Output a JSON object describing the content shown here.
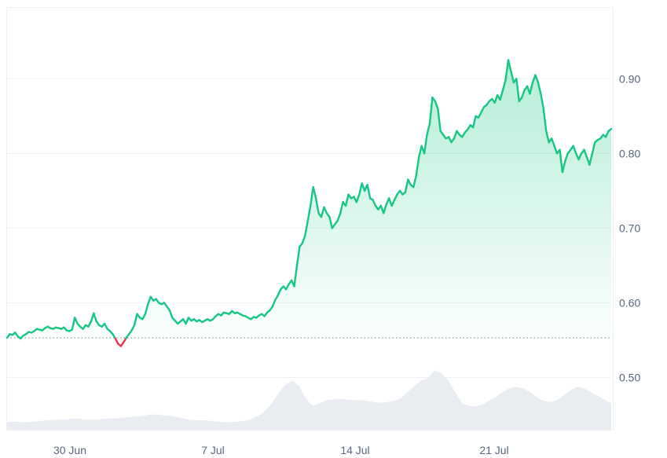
{
  "chart_data": {
    "type": "area",
    "title": "",
    "xlabel": "",
    "ylabel": "",
    "x_ticks": [
      "30 Jun",
      "7 Jul",
      "14 Jul",
      "21 Jul"
    ],
    "y_ticks": [
      "0.90",
      "0.80",
      "0.70",
      "0.60",
      "0.50"
    ],
    "ylim": [
      0.43,
      0.995
    ],
    "y_axis_position": "right",
    "grid": "horizontal",
    "baseline": 0.553,
    "colors": {
      "up": "#16c784",
      "down": "#ea3943",
      "fill": "#16c784",
      "volume": "#e9ecf0",
      "grid": "#eff2f5",
      "axis_text": "#58667e"
    },
    "series": [
      {
        "values": [
          0.553,
          0.558,
          0.557,
          0.56,
          0.555,
          0.552,
          0.556,
          0.558,
          0.561,
          0.56,
          0.562,
          0.565,
          0.564,
          0.563,
          0.566,
          0.568,
          0.566,
          0.565,
          0.567,
          0.566,
          0.565,
          0.567,
          0.563,
          0.562,
          0.564,
          0.58,
          0.572,
          0.568,
          0.565,
          0.57,
          0.568,
          0.575,
          0.586,
          0.575,
          0.57,
          0.568,
          0.572,
          0.565,
          0.562,
          0.558,
          0.552,
          0.545,
          0.542,
          0.547,
          0.553,
          0.558,
          0.563,
          0.57,
          0.585,
          0.58,
          0.578,
          0.585,
          0.598,
          0.608,
          0.603,
          0.605,
          0.6,
          0.598,
          0.6,
          0.595,
          0.59,
          0.58,
          0.576,
          0.572,
          0.575,
          0.578,
          0.572,
          0.58,
          0.576,
          0.578,
          0.575,
          0.577,
          0.574,
          0.576,
          0.578,
          0.576,
          0.578,
          0.582,
          0.585,
          0.583,
          0.587,
          0.586,
          0.585,
          0.589,
          0.586,
          0.587,
          0.585,
          0.583,
          0.582,
          0.58,
          0.578,
          0.581,
          0.58,
          0.583,
          0.585,
          0.582,
          0.587,
          0.59,
          0.595,
          0.604,
          0.61,
          0.618,
          0.622,
          0.618,
          0.625,
          0.63,
          0.622,
          0.65,
          0.675,
          0.68,
          0.69,
          0.71,
          0.73,
          0.755,
          0.74,
          0.72,
          0.715,
          0.728,
          0.72,
          0.715,
          0.7,
          0.705,
          0.71,
          0.72,
          0.735,
          0.73,
          0.745,
          0.74,
          0.742,
          0.735,
          0.745,
          0.76,
          0.75,
          0.758,
          0.74,
          0.738,
          0.73,
          0.725,
          0.73,
          0.72,
          0.732,
          0.74,
          0.73,
          0.738,
          0.745,
          0.75,
          0.745,
          0.748,
          0.765,
          0.758,
          0.755,
          0.77,
          0.795,
          0.81,
          0.8,
          0.825,
          0.84,
          0.875,
          0.87,
          0.86,
          0.83,
          0.825,
          0.82,
          0.822,
          0.815,
          0.82,
          0.83,
          0.825,
          0.822,
          0.828,
          0.832,
          0.838,
          0.835,
          0.85,
          0.848,
          0.855,
          0.862,
          0.865,
          0.87,
          0.873,
          0.868,
          0.878,
          0.872,
          0.885,
          0.898,
          0.925,
          0.91,
          0.895,
          0.9,
          0.87,
          0.875,
          0.885,
          0.89,
          0.88,
          0.895,
          0.905,
          0.895,
          0.88,
          0.86,
          0.83,
          0.815,
          0.82,
          0.81,
          0.8,
          0.805,
          0.775,
          0.79,
          0.8,
          0.805,
          0.81,
          0.8,
          0.792,
          0.8,
          0.805,
          0.795,
          0.785,
          0.8,
          0.815,
          0.818,
          0.82,
          0.825,
          0.822,
          0.83,
          0.833
        ]
      }
    ],
    "volume": [
      0.12,
      0.13,
      0.12,
      0.12,
      0.13,
      0.14,
      0.15,
      0.16,
      0.16,
      0.17,
      0.18,
      0.17,
      0.16,
      0.16,
      0.17,
      0.18,
      0.18,
      0.19,
      0.2,
      0.21,
      0.22,
      0.24,
      0.24,
      0.23,
      0.22,
      0.2,
      0.18,
      0.16,
      0.15,
      0.15,
      0.14,
      0.13,
      0.12,
      0.12,
      0.13,
      0.14,
      0.17,
      0.22,
      0.3,
      0.42,
      0.58,
      0.72,
      0.78,
      0.7,
      0.5,
      0.38,
      0.42,
      0.47,
      0.48,
      0.49,
      0.48,
      0.47,
      0.47,
      0.46,
      0.44,
      0.43,
      0.44,
      0.46,
      0.5,
      0.6,
      0.7,
      0.78,
      0.82,
      0.94,
      0.9,
      0.78,
      0.6,
      0.42,
      0.38,
      0.37,
      0.4,
      0.46,
      0.52,
      0.6,
      0.66,
      0.68,
      0.66,
      0.6,
      0.52,
      0.46,
      0.44,
      0.47,
      0.55,
      0.63,
      0.68,
      0.66,
      0.6,
      0.54,
      0.48,
      0.42
    ]
  }
}
